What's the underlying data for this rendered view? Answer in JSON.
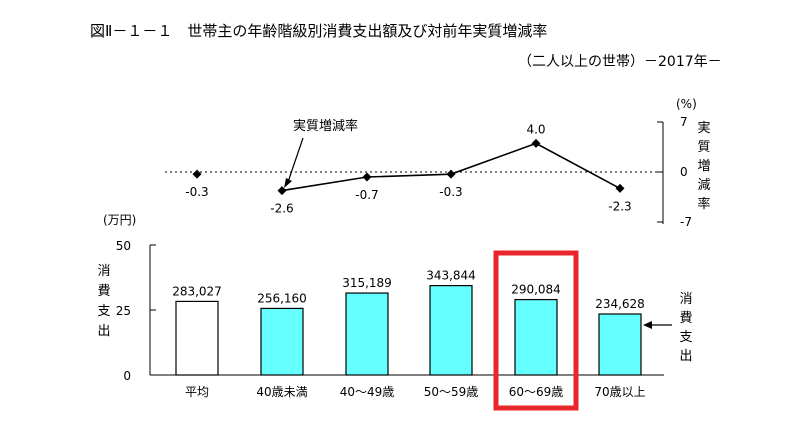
{
  "figure": {
    "title": "図Ⅱ－１－１　世帯主の年齢階級別消費支出額及び対前年実質増減率",
    "subtitle": "（二人以上の世帯）－2017年－"
  },
  "chart_data": [
    {
      "type": "line",
      "title": "",
      "series": [
        {
          "name": "実質増減率",
          "values": [
            -0.3,
            -2.6,
            -0.7,
            -0.3,
            4.0,
            -2.3
          ],
          "labels": [
            "-0.3",
            "-2.6",
            "-0.7",
            "-0.3",
            "4.0",
            "-2.3"
          ]
        }
      ],
      "categories": [
        "平均",
        "40歳未満",
        "40～49歳",
        "50～59歳",
        "60～69歳",
        "70歳以上"
      ],
      "y_axis": {
        "position": "right",
        "unit": "(%)",
        "label": "実質増減率",
        "ticks": [
          "7",
          "0",
          "-7"
        ],
        "tick_values": [
          7,
          0,
          -7
        ],
        "ylim": [
          -7,
          7
        ]
      },
      "annotation": "実質増減率",
      "zero_line": "dotted",
      "first_point_connected": false
    },
    {
      "type": "bar",
      "title": "",
      "categories": [
        "平均",
        "40歳未満",
        "40～49歳",
        "50～59歳",
        "60～69歳",
        "70歳以上"
      ],
      "values": [
        283027,
        256160,
        315189,
        343844,
        290084,
        234628
      ],
      "value_labels": [
        "283,027",
        "256,160",
        "315,189",
        "343,844",
        "290,084",
        "234,628"
      ],
      "bar_colors": [
        "#ffffff",
        "#66ffff",
        "#66ffff",
        "#66ffff",
        "#66ffff",
        "#66ffff"
      ],
      "y_axis": {
        "position": "left",
        "unit": "(万円)",
        "label": "消費支出",
        "ticks": [
          "50",
          "25",
          "0"
        ],
        "tick_values": [
          50,
          25,
          0
        ],
        "ylim": [
          0,
          50
        ]
      },
      "right_label": "消費支出",
      "highlight": {
        "category": "60～69歳",
        "color": "#e8262c"
      }
    }
  ]
}
